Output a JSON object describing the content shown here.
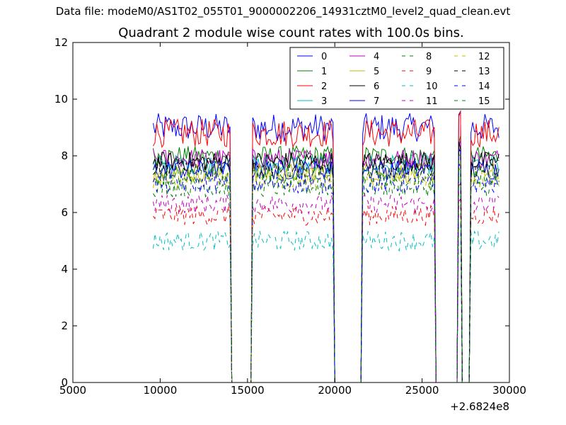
{
  "suptitle": "Data file: modeM0/AS1T02_055T01_9000002206_14931cztM0_level2_quad_clean.evt",
  "chart_data": {
    "type": "line",
    "title": "Quadrant 2 module wise count rates with 100.0s bins.",
    "xlabel": "",
    "ylabel": "",
    "x_offset_label": "+2.6824e8",
    "xlim": [
      5000,
      30000
    ],
    "ylim": [
      0,
      12
    ],
    "xticks": [
      5000,
      10000,
      15000,
      20000,
      25000,
      30000
    ],
    "xtick_labels": [
      "5000",
      "10000",
      "15000",
      "20000",
      "25000",
      "30000"
    ],
    "yticks": [
      0,
      2,
      4,
      6,
      8,
      10,
      12
    ],
    "ytick_labels": [
      "0",
      "2",
      "4",
      "6",
      "8",
      "10",
      "12"
    ],
    "grid": false,
    "legend": {
      "placement": "upper-right",
      "columns": 4
    },
    "segments": [
      {
        "start": 9600,
        "end": 14000,
        "spike": null
      },
      {
        "start": 15300,
        "end": 19900,
        "spike": null
      },
      {
        "start": 21600,
        "end": 25700,
        "spike": null
      },
      {
        "start": 27100,
        "end": 27200,
        "spike": "narrow"
      },
      {
        "start": 27800,
        "end": 29400,
        "spike": null
      }
    ],
    "drop_to_zero": [
      [
        14000,
        14100,
        15200,
        15300
      ],
      [
        19900,
        20000,
        21500,
        21600
      ],
      [
        25700,
        25800,
        27000,
        27100
      ],
      [
        27200,
        27300,
        27700,
        27800
      ]
    ],
    "series": [
      {
        "name": "0",
        "color": "#0000ff",
        "dash": "solid",
        "mean": 9.0
      },
      {
        "name": "1",
        "color": "#008000",
        "dash": "solid",
        "mean": 8.0
      },
      {
        "name": "2",
        "color": "#ff0000",
        "dash": "solid",
        "mean": 8.8
      },
      {
        "name": "3",
        "color": "#00bfbf",
        "dash": "solid",
        "mean": 7.7
      },
      {
        "name": "4",
        "color": "#bf00bf",
        "dash": "solid",
        "mean": 7.9
      },
      {
        "name": "5",
        "color": "#bfbf00",
        "dash": "solid",
        "mean": 7.4
      },
      {
        "name": "6",
        "color": "#000000",
        "dash": "solid",
        "mean": 7.8
      },
      {
        "name": "7",
        "color": "#0000ff",
        "dash": "solid",
        "mean": 7.5
      },
      {
        "name": "8",
        "color": "#008000",
        "dash": "dashed",
        "mean": 6.9
      },
      {
        "name": "9",
        "color": "#ff0000",
        "dash": "dashed",
        "mean": 5.9
      },
      {
        "name": "10",
        "color": "#00bfbf",
        "dash": "dashed",
        "mean": 5.0
      },
      {
        "name": "11",
        "color": "#bf00bf",
        "dash": "dashed",
        "mean": 6.3
      },
      {
        "name": "12",
        "color": "#bfbf00",
        "dash": "dashed",
        "mean": 7.2
      },
      {
        "name": "13",
        "color": "#000000",
        "dash": "dashed",
        "mean": 7.6
      },
      {
        "name": "14",
        "color": "#0000ff",
        "dash": "dashed",
        "mean": 7.0
      },
      {
        "name": "15",
        "color": "#008000",
        "dash": "dashed",
        "mean": 7.3
      }
    ]
  }
}
